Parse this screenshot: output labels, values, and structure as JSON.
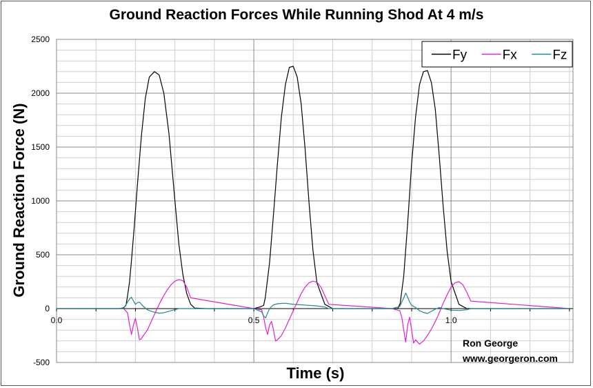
{
  "chart_data": {
    "type": "line",
    "title": "Ground Reaction Forces While Running Shod At 4 m/s",
    "xlabel": "Time (s)",
    "ylabel": "Ground Reaction Force (N)",
    "xlim": [
      0,
      1.309
    ],
    "ylim": [
      -500,
      2500
    ],
    "yticks": [
      -500,
      0,
      500,
      1000,
      1500,
      2000,
      2500
    ],
    "xtick_labels": [
      {
        "x": 0,
        "label": "0.0"
      },
      {
        "x": 0.5,
        "label": "0.5"
      },
      {
        "x": 1.0,
        "label": "1.0"
      }
    ],
    "grid": true,
    "legend_position": "top-right",
    "series": [
      {
        "name": "Fy",
        "color": "#000000",
        "x": [
          0.0,
          0.16,
          0.17,
          0.176,
          0.18,
          0.185,
          0.19,
          0.197,
          0.205,
          0.215,
          0.225,
          0.235,
          0.248,
          0.26,
          0.272,
          0.285,
          0.3,
          0.31,
          0.32,
          0.33,
          0.34,
          0.35,
          0.38,
          0.5,
          0.515,
          0.525,
          0.529,
          0.54,
          0.55,
          0.56,
          0.57,
          0.58,
          0.59,
          0.6,
          0.61,
          0.62,
          0.63,
          0.64,
          0.65,
          0.66,
          0.68,
          0.7,
          0.85,
          0.865,
          0.871,
          0.88,
          0.89,
          0.9,
          0.91,
          0.92,
          0.93,
          0.94,
          0.95,
          0.96,
          0.97,
          0.98,
          0.99,
          1.0,
          1.02,
          1.04,
          1.3
        ],
        "values": [
          0,
          0,
          8,
          30,
          120,
          250,
          450,
          760,
          1150,
          1600,
          1950,
          2150,
          2200,
          2170,
          2000,
          1620,
          1000,
          600,
          320,
          140,
          40,
          5,
          0,
          0,
          15,
          30,
          100,
          430,
          880,
          1350,
          1780,
          2080,
          2240,
          2250,
          2150,
          1900,
          1480,
          980,
          540,
          240,
          40,
          0,
          0,
          0,
          50,
          300,
          800,
          1350,
          1780,
          2080,
          2200,
          2210,
          2100,
          1850,
          1420,
          950,
          530,
          250,
          40,
          0,
          0
        ]
      },
      {
        "name": "Fx",
        "color": "#e020d0",
        "x": [
          0.0,
          0.17,
          0.18,
          0.185,
          0.19,
          0.195,
          0.2,
          0.205,
          0.21,
          0.215,
          0.22,
          0.23,
          0.24,
          0.25,
          0.26,
          0.27,
          0.28,
          0.29,
          0.3,
          0.31,
          0.32,
          0.33,
          0.34,
          0.5,
          0.52,
          0.525,
          0.53,
          0.535,
          0.54,
          0.545,
          0.55,
          0.555,
          0.56,
          0.57,
          0.58,
          0.59,
          0.6,
          0.61,
          0.62,
          0.63,
          0.64,
          0.65,
          0.66,
          0.67,
          0.68,
          0.69,
          0.85,
          0.87,
          0.875,
          0.88,
          0.885,
          0.89,
          0.895,
          0.9,
          0.905,
          0.91,
          0.92,
          0.93,
          0.94,
          0.95,
          0.96,
          0.97,
          0.98,
          0.99,
          1.0,
          1.01,
          1.02,
          1.03,
          1.04,
          1.05,
          1.3
        ],
        "values": [
          0,
          0,
          -40,
          -150,
          -240,
          -150,
          -90,
          -180,
          -290,
          -280,
          -250,
          -200,
          -120,
          -40,
          40,
          110,
          170,
          220,
          255,
          270,
          260,
          200,
          100,
          0,
          -10,
          -80,
          -180,
          -240,
          -150,
          -120,
          -200,
          -300,
          -290,
          -250,
          -180,
          -100,
          -20,
          60,
          140,
          200,
          240,
          255,
          245,
          200,
          120,
          40,
          0,
          -20,
          -80,
          -200,
          -310,
          -150,
          -80,
          -200,
          -320,
          -290,
          -330,
          -300,
          -250,
          -190,
          -120,
          -40,
          50,
          130,
          200,
          240,
          250,
          220,
          150,
          70,
          0
        ]
      },
      {
        "name": "Fz",
        "color": "#1b8a8a",
        "x": [
          0.0,
          0.17,
          0.175,
          0.18,
          0.185,
          0.19,
          0.195,
          0.2,
          0.205,
          0.21,
          0.22,
          0.23,
          0.24,
          0.25,
          0.26,
          0.27,
          0.28,
          0.29,
          0.3,
          0.31,
          0.5,
          0.52,
          0.525,
          0.53,
          0.535,
          0.54,
          0.545,
          0.55,
          0.56,
          0.57,
          0.58,
          0.59,
          0.6,
          0.62,
          0.64,
          0.66,
          0.68,
          0.69,
          0.85,
          0.87,
          0.875,
          0.88,
          0.885,
          0.89,
          0.895,
          0.9,
          0.91,
          0.92,
          0.93,
          0.94,
          0.95,
          0.96,
          0.97,
          0.98,
          1.0,
          1.02,
          1.04,
          1.05,
          1.3
        ],
        "values": [
          0,
          0,
          30,
          60,
          90,
          105,
          70,
          40,
          55,
          60,
          20,
          -10,
          -25,
          -35,
          -42,
          -40,
          -30,
          -20,
          -10,
          0,
          0,
          -30,
          -70,
          -85,
          -40,
          0,
          20,
          35,
          45,
          48,
          50,
          45,
          40,
          35,
          30,
          25,
          15,
          0,
          0,
          20,
          60,
          100,
          145,
          105,
          60,
          30,
          10,
          -20,
          -35,
          -45,
          -25,
          -5,
          10,
          0,
          -15,
          -18,
          -10,
          0,
          0
        ]
      }
    ]
  },
  "credit": {
    "author": "Ron George",
    "website": "www.georgeron.com"
  }
}
